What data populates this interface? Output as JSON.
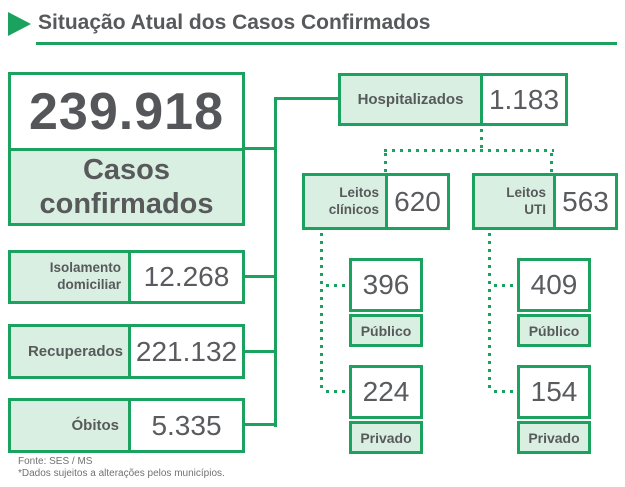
{
  "header": {
    "title": "Situação Atual dos Casos Confirmados"
  },
  "confirmed": {
    "value": "239.918",
    "label": "Casos\nconfirmados"
  },
  "isolation": {
    "label": "Isolamento\ndomiciliar",
    "value": "12.268"
  },
  "recovered": {
    "label": "Recuperados",
    "value": "221.132"
  },
  "deaths": {
    "label": "Óbitos",
    "value": "5.335"
  },
  "hospitalized": {
    "label": "Hospitalizados",
    "value": "1.183"
  },
  "clinical_beds": {
    "label": "Leitos\nclínicos",
    "value": "620",
    "public": {
      "value": "396",
      "label": "Público"
    },
    "private": {
      "value": "224",
      "label": "Privado"
    }
  },
  "icu_beds": {
    "label": "Leitos\nUTI",
    "value": "563",
    "public": {
      "value": "409",
      "label": "Público"
    },
    "private": {
      "value": "154",
      "label": "Privado"
    }
  },
  "footer": {
    "source": "Fonte: SES / MS",
    "note": "*Dados sujeitos a alterações pelos municípios."
  },
  "icons": {
    "title_arrow": "right-pointing-triangle"
  },
  "colors": {
    "accent_green": "#1aa25e",
    "fill_light_green": "#d9efe2",
    "text_dark_gray": "#58595b"
  }
}
